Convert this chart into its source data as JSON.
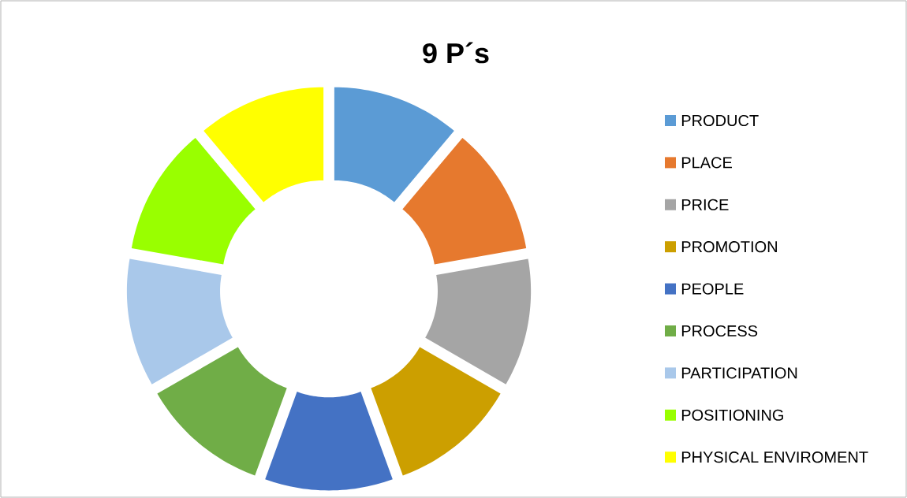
{
  "chart_data": {
    "type": "donut",
    "title": "9 P´s",
    "categories": [
      "PRODUCT",
      "PLACE",
      "PRICE",
      "PROMOTION",
      "PEOPLE",
      "PROCESS",
      "PARTICIPATION",
      "POSITIONING",
      "PHYSICAL ENVIROMENT"
    ],
    "values": [
      11.11,
      11.11,
      11.11,
      11.11,
      11.11,
      11.11,
      11.11,
      11.11,
      11.11
    ],
    "colors": [
      "#5b9bd5",
      "#e6792e",
      "#a5a5a5",
      "#cc9f00",
      "#4472c4",
      "#70ad47",
      "#a9c8ea",
      "#99ff00",
      "#ffff00"
    ],
    "legend": "right"
  }
}
